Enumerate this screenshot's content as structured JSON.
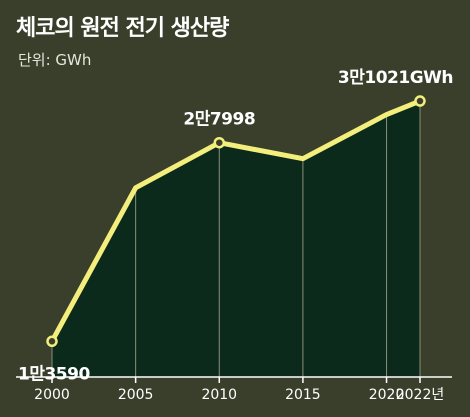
{
  "title": "체코의 원전 전기 생산량",
  "unit_label": "단위: GWh",
  "colors": {
    "background": "#3a3f2b",
    "area_fill": "#0c2a1c",
    "line": "#f4ef7c",
    "point_fill": "#3a3f2b",
    "guide_line": "#8a8f7a",
    "axis": "#ffffff",
    "tick_text": "#ffffff"
  },
  "chart_data": {
    "type": "area",
    "title": "체코의 원전 전기 생산량",
    "unit": "GWh",
    "x": [
      2000,
      2005,
      2010,
      2015,
      2020,
      2022
    ],
    "x_tick_labels": [
      "2000",
      "2005",
      "2010",
      "2015",
      "2020",
      "2022년"
    ],
    "values": [
      13590,
      24728,
      27998,
      26841,
      30043,
      31021
    ],
    "markers_at": [
      2000,
      2010,
      2022
    ],
    "annotations": [
      {
        "x": 2000,
        "text": "1만3590"
      },
      {
        "x": 2010,
        "text": "2만7998"
      },
      {
        "x": 2022,
        "text": "3만1021GWh"
      }
    ],
    "xlim": [
      1998,
      2025
    ],
    "ylim": [
      11000,
      34000
    ],
    "grid": false,
    "legend": "none"
  }
}
